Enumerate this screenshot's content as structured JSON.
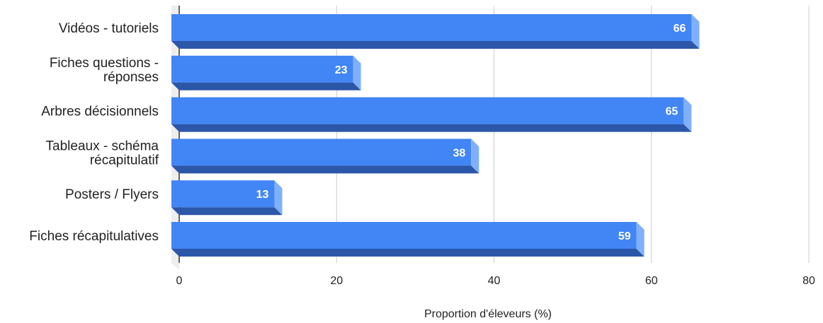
{
  "chart_data": {
    "type": "bar",
    "orientation": "horizontal",
    "style": "3d",
    "categories": [
      "Vidéos - tutoriels",
      "Fiches questions - réponses",
      "Arbres décisionnels",
      "Tableaux - schéma récapitulatif",
      "Posters / Flyers",
      "Fiches récapitulatives"
    ],
    "category_lines": [
      [
        "Vidéos - tutoriels"
      ],
      [
        "Fiches questions -",
        "réponses"
      ],
      [
        "Arbres décisionnels"
      ],
      [
        "Tableaux - schéma",
        "récapitulatif"
      ],
      [
        "Posters / Flyers"
      ],
      [
        "Fiches récapitulatives"
      ]
    ],
    "values": [
      66,
      23,
      65,
      38,
      13,
      59
    ],
    "data_labels": [
      "66",
      "23",
      "65",
      "38",
      "13",
      "59"
    ],
    "xlabel": "Proportion d'éleveurs (%)",
    "ylabel": "",
    "xlim": [
      0,
      80
    ],
    "xticks": [
      "0",
      "20",
      "40",
      "60",
      "80"
    ],
    "grid": true,
    "legend": "none",
    "colors": {
      "bar_front": "#4285f4",
      "bar_top": "#2c56a8",
      "bar_side": "#7fb0ff",
      "grid": "#cccccc",
      "floor": "#eeeeee",
      "axis": "#333333"
    }
  }
}
